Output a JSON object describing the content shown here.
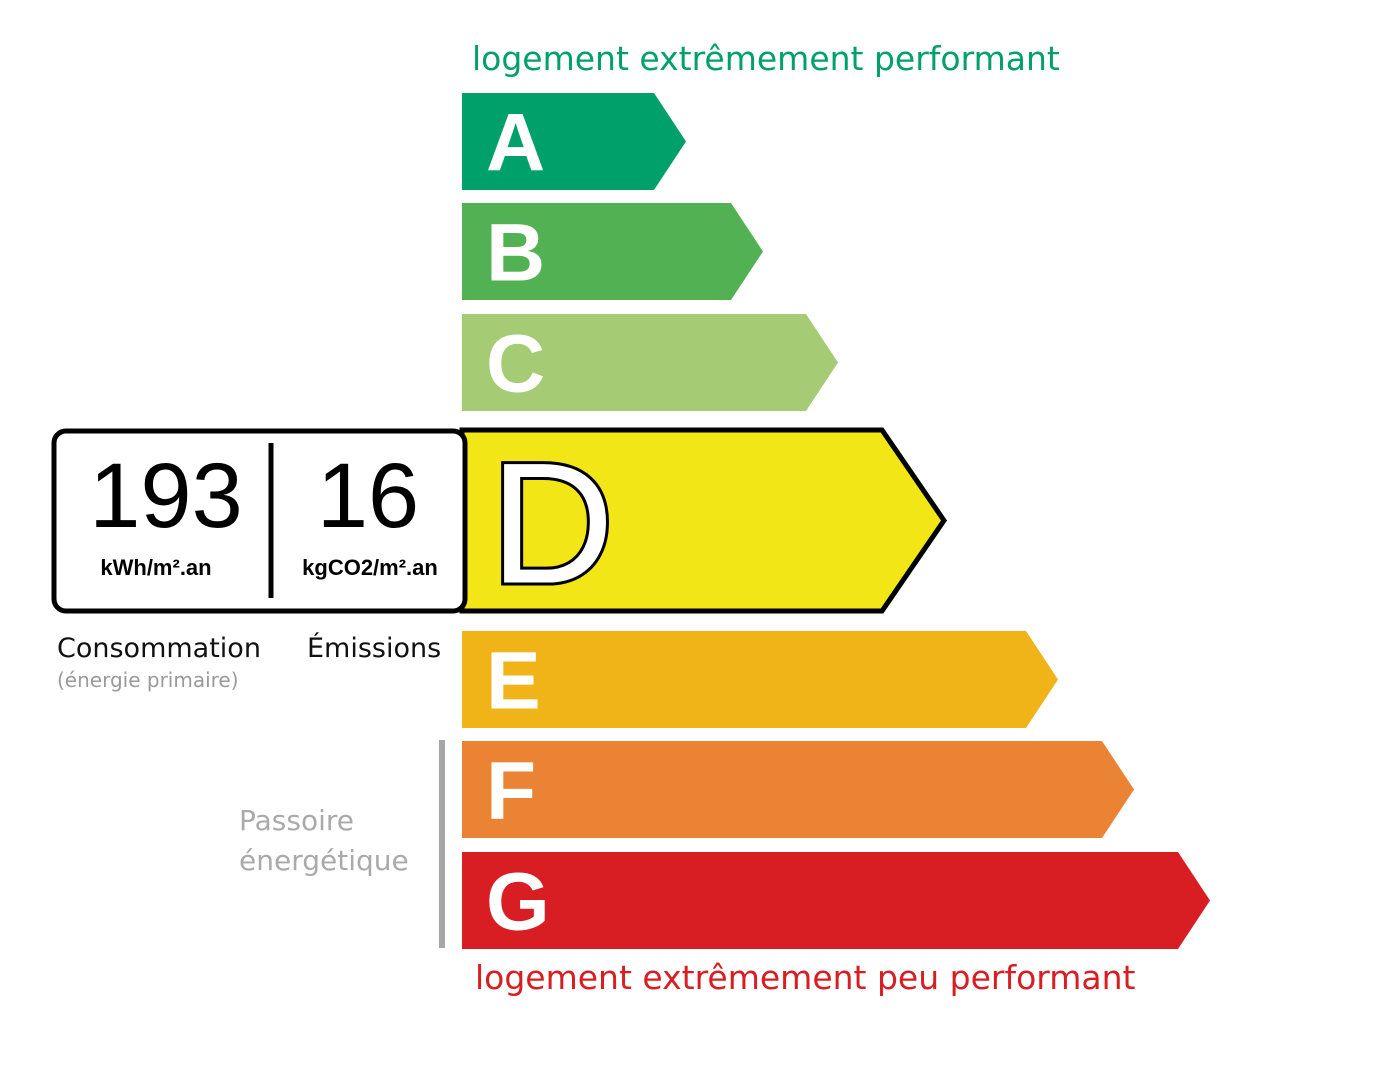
{
  "header": {
    "top_label": "logement extrêmement performant",
    "top_color": "#00a06b"
  },
  "footer": {
    "bottom_label": "logement extrêmement peu performant",
    "bottom_color": "#d81e22"
  },
  "ratings": [
    {
      "letter": "A",
      "color": "#00a06b"
    },
    {
      "letter": "B",
      "color": "#52b153"
    },
    {
      "letter": "C",
      "color": "#a5cc74"
    },
    {
      "letter": "D",
      "color": "#f2e617",
      "selected": true
    },
    {
      "letter": "E",
      "color": "#f0b418"
    },
    {
      "letter": "F",
      "color": "#eb8334"
    },
    {
      "letter": "G",
      "color": "#d81e22"
    }
  ],
  "result": {
    "consumption_value": "193",
    "consumption_unit": "kWh/m².an",
    "emissions_value": "16",
    "emissions_unit": "kgCO2/m².an",
    "consumption_label": "Consommation",
    "consumption_sublabel": "(énergie primaire)",
    "emissions_label": "Émissions"
  },
  "passoire": {
    "line1": "Passoire",
    "line2": "énergétique"
  }
}
